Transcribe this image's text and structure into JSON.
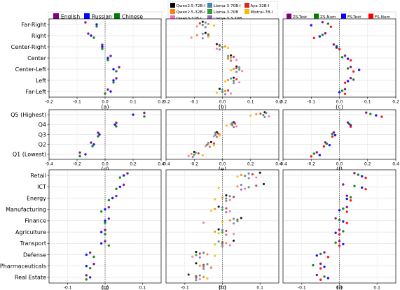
{
  "figure": {
    "panel_labels": [
      "(a)",
      "(b)",
      "(c)",
      "(d)",
      "(e)",
      "(f)",
      "(g)",
      "(h)",
      "(i)"
    ]
  },
  "legends": {
    "language": {
      "items": [
        {
          "label": "English",
          "color": "#800080"
        },
        {
          "label": "Russian",
          "color": "#0000ff"
        },
        {
          "label": "Chinese",
          "color": "#008000"
        }
      ]
    },
    "model": {
      "items": [
        {
          "label": "Qwen2.5-72B-I",
          "color": "#000000"
        },
        {
          "label": "Llama-3-70B-I",
          "color": "#4682b4"
        },
        {
          "label": "Aya-32B-I",
          "color": "#d62728"
        },
        {
          "label": "Qwen2.5-32B-I",
          "color": "#ff7f0e"
        },
        {
          "label": "Llama-3-70B",
          "color": "#2ca02c"
        },
        {
          "label": "Mistral-7B-I",
          "color": "#f0c000"
        },
        {
          "label": "Qwen3-32B-I",
          "color": "#ff69b4"
        },
        {
          "label": "Llama-3.3-70B",
          "color": "#9467bd"
        }
      ]
    },
    "prompt": {
      "items": [
        {
          "label": "ZS-Text",
          "color": "#800080"
        },
        {
          "label": "ZS-Num",
          "color": "#008000"
        },
        {
          "label": "FS-Text",
          "color": "#0000ff"
        },
        {
          "label": "FS-Num",
          "color": "#ff0000"
        }
      ]
    }
  },
  "chart_data": [
    {
      "type": "scatter",
      "panel": "(a)",
      "group": "language",
      "categories": [
        "Far-Right",
        "Right",
        "Center-Right",
        "Center",
        "Center-Left",
        "Left",
        "Far-Left"
      ],
      "xlim": [
        -0.2,
        0.2
      ],
      "xticks": [
        -0.2,
        -0.1,
        0.0,
        0.1,
        0.2
      ],
      "grid": true,
      "show_categories": true,
      "series": [
        {
          "name": "English",
          "values": [
            -0.07,
            -0.06,
            -0.01,
            0.02,
            0.05,
            0.04,
            0.01
          ]
        },
        {
          "name": "Russian",
          "values": [
            -0.03,
            -0.05,
            -0.01,
            0.01,
            0.03,
            0.03,
            0.02
          ]
        },
        {
          "name": "Chinese",
          "values": [
            -0.03,
            -0.04,
            -0.01,
            0.01,
            0.04,
            0.03,
            0.0
          ]
        }
      ]
    },
    {
      "type": "scatter",
      "panel": "(b)",
      "group": "model",
      "categories": [
        "Far-Right",
        "Right",
        "Center-Right",
        "Center",
        "Center-Left",
        "Left",
        "Far-Left"
      ],
      "xlim": [
        -0.2,
        0.2
      ],
      "xticks": [
        -0.2,
        -0.1,
        0.0,
        0.1,
        0.2
      ],
      "grid": true,
      "show_categories": false,
      "series": [
        {
          "name": "Qwen2.5-72B-I",
          "values": [
            -0.07,
            -0.06,
            -0.02,
            0.03,
            0.05,
            0.04,
            -0.01
          ]
        },
        {
          "name": "Llama-3-70B-I",
          "values": [
            -0.06,
            -0.07,
            -0.01,
            0.02,
            0.06,
            0.03,
            0.0
          ]
        },
        {
          "name": "Aya-32B-I",
          "values": [
            -0.08,
            -0.05,
            -0.01,
            0.04,
            0.05,
            0.05,
            0.02
          ]
        },
        {
          "name": "Qwen2.5-32B-I",
          "values": [
            -0.05,
            -0.09,
            0.01,
            0.03,
            0.04,
            0.02,
            0.01
          ]
        },
        {
          "name": "Llama-3-70B",
          "values": [
            -0.07,
            -0.05,
            0.0,
            0.02,
            0.06,
            0.04,
            0.0
          ]
        },
        {
          "name": "Mistral-7B-I",
          "values": [
            -0.03,
            -0.05,
            0.02,
            0.02,
            0.03,
            0.01,
            -0.02
          ]
        },
        {
          "name": "Qwen3-32B-I",
          "values": [
            -0.09,
            -0.11,
            -0.02,
            0.05,
            0.07,
            0.06,
            0.03
          ]
        },
        {
          "name": "Llama-3.3-70B",
          "values": [
            -0.06,
            -0.07,
            -0.01,
            0.03,
            0.05,
            0.04,
            0.01
          ]
        }
      ]
    },
    {
      "type": "scatter",
      "panel": "(c)",
      "group": "prompt",
      "categories": [
        "Far-Right",
        "Right",
        "Center-Right",
        "Center",
        "Center-Left",
        "Left",
        "Far-Left"
      ],
      "xlim": [
        -0.2,
        0.2
      ],
      "xticks": [
        -0.2,
        -0.1,
        0.0,
        0.1,
        0.2
      ],
      "grid": true,
      "show_categories": false,
      "series": [
        {
          "name": "ZS-Text",
          "values": [
            -0.06,
            -0.05,
            -0.02,
            0.02,
            0.04,
            0.04,
            0.02
          ]
        },
        {
          "name": "ZS-Num",
          "values": [
            -0.04,
            -0.06,
            -0.01,
            0.01,
            0.03,
            0.05,
            0.01
          ]
        },
        {
          "name": "FS-Text",
          "values": [
            -0.1,
            -0.07,
            -0.01,
            0.03,
            0.07,
            0.03,
            0.0
          ]
        },
        {
          "name": "FS-Num",
          "values": [
            -0.03,
            -0.09,
            0.0,
            0.04,
            0.05,
            0.02,
            0.02
          ]
        }
      ]
    },
    {
      "type": "scatter",
      "panel": "(d)",
      "group": "language",
      "categories": [
        "Q5 (Highest)",
        "Q4",
        "Q3",
        "Q2",
        "Q1 (Lowest)"
      ],
      "xlim": [
        -0.4,
        0.4
      ],
      "xticks": [
        -0.4,
        -0.2,
        0.0,
        0.2,
        0.4
      ],
      "grid": true,
      "show_categories": true,
      "series": [
        {
          "name": "English",
          "values": [
            0.28,
            0.08,
            -0.05,
            -0.1,
            -0.18
          ]
        },
        {
          "name": "Russian",
          "values": [
            0.2,
            0.07,
            -0.04,
            -0.08,
            -0.14
          ]
        },
        {
          "name": "Chinese",
          "values": [
            0.28,
            0.08,
            -0.05,
            -0.09,
            -0.18
          ]
        }
      ]
    },
    {
      "type": "scatter",
      "panel": "(e)",
      "group": "model",
      "categories": [
        "Q5 (Highest)",
        "Q4",
        "Q3",
        "Q2",
        "Q1 (Lowest)"
      ],
      "xlim": [
        -0.4,
        0.4
      ],
      "xticks": [
        -0.4,
        -0.2,
        0.0,
        0.2,
        0.4
      ],
      "grid": true,
      "show_categories": false,
      "series": [
        {
          "name": "Qwen2.5-72B-I",
          "values": [
            0.3,
            0.08,
            -0.04,
            -0.08,
            -0.2
          ]
        },
        {
          "name": "Llama-3-70B-I",
          "values": [
            0.31,
            0.07,
            -0.05,
            -0.1,
            -0.19
          ]
        },
        {
          "name": "Aya-32B-I",
          "values": [
            0.27,
            0.09,
            -0.03,
            -0.06,
            -0.17
          ]
        },
        {
          "name": "Qwen2.5-32B-I",
          "values": [
            0.24,
            0.06,
            -0.02,
            -0.1,
            -0.22
          ]
        },
        {
          "name": "Llama-3-70B",
          "values": [
            0.29,
            0.07,
            -0.05,
            -0.11,
            -0.2
          ]
        },
        {
          "name": "Mistral-7B-I",
          "values": [
            0.2,
            0.03,
            -0.02,
            -0.06,
            -0.14
          ]
        },
        {
          "name": "Qwen3-32B-I",
          "values": [
            0.33,
            0.1,
            -0.06,
            -0.12,
            -0.24
          ]
        },
        {
          "name": "Llama-3.3-70B",
          "values": [
            0.3,
            0.08,
            -0.04,
            -0.09,
            -0.21
          ]
        }
      ]
    },
    {
      "type": "scatter",
      "panel": "(f)",
      "group": "prompt",
      "categories": [
        "Q5 (Highest)",
        "Q4",
        "Q3",
        "Q2",
        "Q1 (Lowest)"
      ],
      "xlim": [
        -0.4,
        0.4
      ],
      "xticks": [
        -0.4,
        -0.2,
        0.0,
        0.2,
        0.4
      ],
      "grid": true,
      "show_categories": false,
      "series": [
        {
          "name": "ZS-Text",
          "values": [
            0.19,
            0.06,
            -0.04,
            -0.1,
            -0.16
          ]
        },
        {
          "name": "ZS-Num",
          "values": [
            0.22,
            0.07,
            -0.05,
            -0.09,
            -0.18
          ]
        },
        {
          "name": "FS-Text",
          "values": [
            0.26,
            0.08,
            -0.03,
            -0.07,
            -0.14
          ]
        },
        {
          "name": "FS-Num",
          "values": [
            0.3,
            0.08,
            -0.05,
            -0.11,
            -0.2
          ]
        }
      ]
    },
    {
      "type": "scatter",
      "panel": "(g)",
      "group": "language",
      "categories": [
        "Retail",
        "ICT",
        "Energy",
        "Manufacturing",
        "Finance",
        "Agriculture",
        "Transport",
        "Defense",
        "Pharmaceuticals",
        "Real Estate"
      ],
      "xlim": [
        -0.15,
        0.15
      ],
      "xticks": [
        -0.1,
        0.0,
        0.1
      ],
      "grid": true,
      "show_categories": true,
      "series": [
        {
          "name": "English",
          "values": [
            0.06,
            0.05,
            0.03,
            0.01,
            0.01,
            0.0,
            0.0,
            -0.04,
            -0.03,
            -0.05
          ]
        },
        {
          "name": "Russian",
          "values": [
            0.05,
            0.04,
            0.02,
            0.0,
            0.0,
            -0.01,
            -0.01,
            -0.05,
            -0.05,
            -0.04
          ]
        },
        {
          "name": "Chinese",
          "values": [
            0.04,
            0.03,
            0.01,
            -0.01,
            0.0,
            0.0,
            0.01,
            -0.03,
            -0.04,
            -0.05
          ]
        }
      ]
    },
    {
      "type": "scatter",
      "panel": "(h)",
      "group": "model",
      "categories": [
        "Retail",
        "ICT",
        "Energy",
        "Manufacturing",
        "Finance",
        "Agriculture",
        "Transport",
        "Defense",
        "Pharmaceuticals",
        "Real Estate"
      ],
      "xlim": [
        -0.15,
        0.15
      ],
      "xticks": [
        -0.1,
        0.0,
        0.1
      ],
      "grid": true,
      "show_categories": false,
      "series": [
        {
          "name": "Qwen2.5-72B-I",
          "values": [
            0.1,
            0.11,
            0.01,
            -0.01,
            0.05,
            -0.01,
            0.03,
            -0.07,
            -0.07,
            -0.09
          ]
        },
        {
          "name": "Llama-3-70B-I",
          "values": [
            0.07,
            0.05,
            0.02,
            0.0,
            0.03,
            0.0,
            -0.01,
            -0.05,
            -0.04,
            -0.06
          ]
        },
        {
          "name": "Aya-32B-I",
          "values": [
            0.08,
            0.09,
            0.03,
            0.01,
            0.04,
            0.01,
            0.0,
            -0.06,
            -0.05,
            -0.07
          ]
        },
        {
          "name": "Qwen2.5-32B-I",
          "values": [
            0.05,
            0.04,
            0.0,
            -0.02,
            0.02,
            -0.02,
            0.01,
            -0.04,
            -0.06,
            -0.05
          ]
        },
        {
          "name": "Llama-3-70B",
          "values": [
            0.06,
            0.07,
            0.01,
            0.0,
            0.04,
            0.0,
            0.0,
            -0.07,
            -0.05,
            -0.07
          ]
        },
        {
          "name": "Mistral-7B-I",
          "values": [
            0.04,
            -0.01,
            -0.02,
            -0.03,
            0.0,
            -0.01,
            -0.02,
            -0.02,
            -0.03,
            -0.04
          ]
        },
        {
          "name": "Qwen3-32B-I",
          "values": [
            0.09,
            0.06,
            0.02,
            0.02,
            -0.05,
            0.03,
            0.02,
            -0.08,
            -0.03,
            -0.06
          ]
        },
        {
          "name": "Llama-3.3-70B",
          "values": [
            0.07,
            0.05,
            0.01,
            0.01,
            0.03,
            0.01,
            0.0,
            -0.06,
            -0.05,
            -0.07
          ]
        }
      ]
    },
    {
      "type": "scatter",
      "panel": "(i)",
      "group": "prompt",
      "categories": [
        "Retail",
        "ICT",
        "Energy",
        "Manufacturing",
        "Finance",
        "Agriculture",
        "Transport",
        "Defense",
        "Pharmaceuticals",
        "Real Estate"
      ],
      "xlim": [
        -0.15,
        0.15
      ],
      "xticks": [
        -0.1,
        0.0,
        0.1
      ],
      "grid": true,
      "show_categories": false,
      "series": [
        {
          "name": "ZS-Text",
          "values": [
            0.04,
            0.01,
            0.02,
            0.02,
            -0.01,
            0.0,
            0.0,
            -0.04,
            -0.05,
            -0.06
          ]
        },
        {
          "name": "ZS-Num",
          "values": [
            0.05,
            0.04,
            0.03,
            0.01,
            0.0,
            0.01,
            -0.01,
            -0.05,
            -0.07,
            -0.04
          ]
        },
        {
          "name": "FS-Text",
          "values": [
            0.06,
            0.06,
            0.02,
            0.0,
            0.01,
            -0.01,
            0.01,
            -0.06,
            -0.04,
            -0.03
          ]
        },
        {
          "name": "FS-Num",
          "values": [
            0.07,
            0.07,
            0.03,
            0.02,
            0.02,
            0.0,
            0.0,
            -0.03,
            -0.05,
            -0.05
          ]
        }
      ]
    }
  ]
}
